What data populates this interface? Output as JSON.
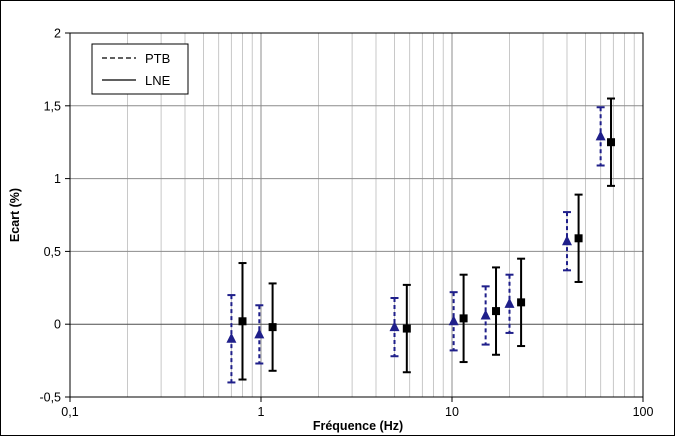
{
  "chart_data": {
    "type": "scatter",
    "title": "",
    "xlabel": "Fréquence (Hz)",
    "ylabel": "Ecart (%)",
    "x_scale": "log",
    "xlim": [
      0.1,
      100
    ],
    "ylim": [
      -0.5,
      2
    ],
    "x_ticks": [
      {
        "value": 0.1,
        "label": "0,1"
      },
      {
        "value": 1,
        "label": "1"
      },
      {
        "value": 10,
        "label": "10"
      },
      {
        "value": 100,
        "label": "100"
      }
    ],
    "y_ticks": [
      {
        "value": -0.5,
        "label": "-0,5"
      },
      {
        "value": 0,
        "label": "0"
      },
      {
        "value": 0.5,
        "label": "0,5"
      },
      {
        "value": 1,
        "label": "1"
      },
      {
        "value": 1.5,
        "label": "1,5"
      },
      {
        "value": 2,
        "label": "2"
      }
    ],
    "grid": {
      "x_minor": true,
      "y_major": true
    },
    "legend_position": "top-left",
    "series": [
      {
        "name": "PTB",
        "marker": "triangle",
        "color": "#1f1f8a",
        "errorbar_style": "dashed",
        "points": [
          {
            "x": 0.7,
            "y": -0.1,
            "err": 0.3
          },
          {
            "x": 0.98,
            "y": -0.07,
            "err": 0.2
          },
          {
            "x": 5.0,
            "y": -0.02,
            "err": 0.2
          },
          {
            "x": 10.2,
            "y": 0.02,
            "err": 0.2
          },
          {
            "x": 15.0,
            "y": 0.06,
            "err": 0.2
          },
          {
            "x": 20.0,
            "y": 0.14,
            "err": 0.2
          },
          {
            "x": 40.0,
            "y": 0.57,
            "err": 0.2
          },
          {
            "x": 60.0,
            "y": 1.29,
            "err": 0.2
          }
        ]
      },
      {
        "name": "LNE",
        "marker": "square",
        "color": "#000000",
        "errorbar_style": "solid",
        "points": [
          {
            "x": 0.8,
            "y": 0.02,
            "err": 0.4
          },
          {
            "x": 1.15,
            "y": -0.02,
            "err": 0.3
          },
          {
            "x": 5.8,
            "y": -0.03,
            "err": 0.3
          },
          {
            "x": 11.5,
            "y": 0.04,
            "err": 0.3
          },
          {
            "x": 17.0,
            "y": 0.09,
            "err": 0.3
          },
          {
            "x": 23.0,
            "y": 0.15,
            "err": 0.3
          },
          {
            "x": 46.0,
            "y": 0.59,
            "err": 0.3
          },
          {
            "x": 68.0,
            "y": 1.25,
            "err": 0.3
          }
        ]
      }
    ]
  }
}
